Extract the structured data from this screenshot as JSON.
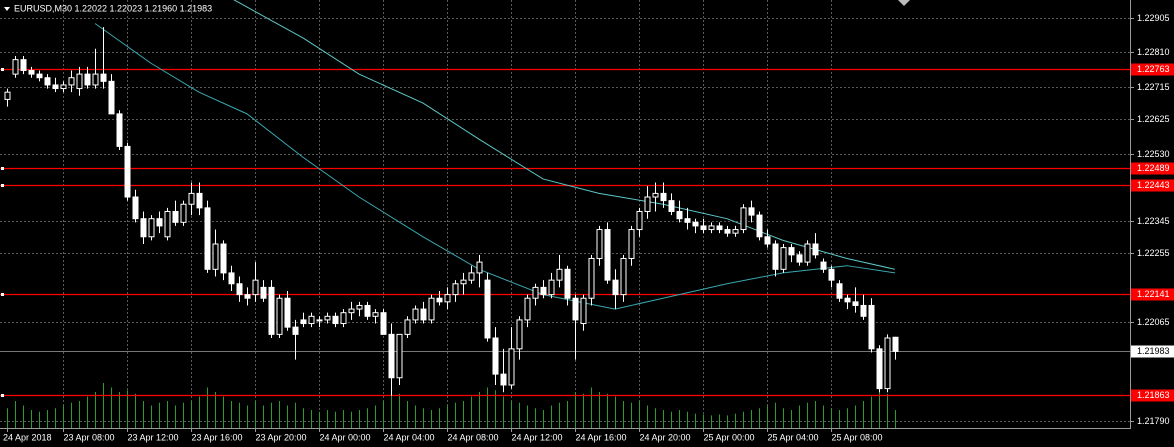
{
  "chart_data": {
    "type": "candlestick",
    "title": "EURUSD,M30  1.22022 1.22023 1.21960 1.21983",
    "ylim": [
      1.21771,
      1.22955
    ],
    "yticks": [
      1.22905,
      {
        "value": 1.2281,
        "label": "1.22810"
      },
      1.22715,
      1.22625,
      {
        "value": 1.2253,
        "label": "1.22530"
      },
      1.22345,
      1.22255,
      1.22065,
      {
        "value": 1.2179,
        "label": "1.21790"
      }
    ],
    "xticks": [
      {
        "value": 0,
        "label": "24 Apr 2018"
      },
      {
        "value": 7,
        "label": "23 Apr 08:00"
      },
      {
        "value": 15,
        "label": "23 Apr 12:00"
      },
      {
        "value": 23,
        "label": "23 Apr 16:00"
      },
      {
        "value": 31,
        "label": "23 Apr 20:00"
      },
      {
        "value": 39,
        "label": "24 Apr 00:00"
      },
      {
        "value": 47,
        "label": "24 Apr 04:00"
      },
      {
        "value": 55,
        "label": "24 Apr 08:00"
      },
      {
        "value": 63,
        "label": "24 Apr 12:00"
      },
      {
        "value": 71,
        "label": "24 Apr 16:00"
      },
      {
        "value": 79,
        "label": "24 Apr 20:00"
      },
      {
        "value": 87,
        "label": "25 Apr 00:00"
      },
      {
        "value": 95,
        "label": "25 Apr 04:00"
      },
      {
        "value": 103,
        "label": "25 Apr 08:00"
      }
    ],
    "grid": true,
    "candle_color": "#ffffff",
    "candles": [
      [
        1.2268,
        1.2271,
        1.2266,
        1.227
      ],
      [
        1.2275,
        1.228,
        1.2274,
        1.2279
      ],
      [
        1.2279,
        1.228,
        1.2275,
        1.2276
      ],
      [
        1.2276,
        1.2277,
        1.2274,
        1.2275
      ],
      [
        1.2275,
        1.2276,
        1.2273,
        1.2274
      ],
      [
        1.2274,
        1.2275,
        1.2271,
        1.2272
      ],
      [
        1.2272,
        1.2274,
        1.227,
        1.2271
      ],
      [
        1.2271,
        1.2273,
        1.227,
        1.2272
      ],
      [
        1.2272,
        1.2276,
        1.227,
        1.2274
      ],
      [
        1.2271,
        1.2277,
        1.2269,
        1.2275
      ],
      [
        1.2275,
        1.2277,
        1.2271,
        1.2272
      ],
      [
        1.2272,
        1.2282,
        1.2271,
        1.2275
      ],
      [
        1.2275,
        1.2288,
        1.2271,
        1.2273
      ],
      [
        1.2273,
        1.2275,
        1.2264,
        1.2264
      ],
      [
        1.2264,
        1.2265,
        1.2254,
        1.2255
      ],
      [
        1.2255,
        1.2256,
        1.224,
        1.2241
      ],
      [
        1.2241,
        1.2243,
        1.2234,
        1.2235
      ],
      [
        1.2235,
        1.2237,
        1.2228,
        1.223
      ],
      [
        1.223,
        1.2236,
        1.2229,
        1.2235
      ],
      [
        1.2235,
        1.2237,
        1.2231,
        1.2233
      ],
      [
        1.223,
        1.2238,
        1.2229,
        1.2237
      ],
      [
        1.2237,
        1.224,
        1.2233,
        1.2234
      ],
      [
        1.2234,
        1.224,
        1.2233,
        1.2239
      ],
      [
        1.2239,
        1.2245,
        1.2236,
        1.2242
      ],
      [
        1.2242,
        1.2245,
        1.2236,
        1.2238
      ],
      [
        1.2238,
        1.224,
        1.222,
        1.2221
      ],
      [
        1.2221,
        1.2232,
        1.2219,
        1.2228
      ],
      [
        1.2228,
        1.2229,
        1.2218,
        1.222
      ],
      [
        1.222,
        1.2222,
        1.2215,
        1.2217
      ],
      [
        1.2217,
        1.2219,
        1.2212,
        1.2214
      ],
      [
        1.2214,
        1.2216,
        1.2211,
        1.2213
      ],
      [
        1.2214,
        1.2223,
        1.2212,
        1.2218
      ],
      [
        1.2216,
        1.2218,
        1.2212,
        1.2213
      ],
      [
        1.2216,
        1.2218,
        1.2202,
        1.2203
      ],
      [
        1.2203,
        1.2214,
        1.2202,
        1.2213
      ],
      [
        1.2213,
        1.2215,
        1.2204,
        1.2205
      ],
      [
        1.2205,
        1.2207,
        1.2196,
        1.2203
      ],
      [
        1.2207,
        1.2209,
        1.2205,
        1.2206
      ],
      [
        1.2206,
        1.2209,
        1.2205,
        1.2208
      ],
      [
        1.2207,
        1.2208,
        1.2205,
        1.2207
      ],
      [
        1.2207,
        1.2209,
        1.2206,
        1.2208
      ],
      [
        1.2208,
        1.2209,
        1.2205,
        1.2206
      ],
      [
        1.2206,
        1.221,
        1.2205,
        1.2209
      ],
      [
        1.2209,
        1.2212,
        1.2207,
        1.221
      ],
      [
        1.221,
        1.2212,
        1.2208,
        1.2211
      ],
      [
        1.2211,
        1.2212,
        1.2207,
        1.2208
      ],
      [
        1.2208,
        1.221,
        1.2206,
        1.2209
      ],
      [
        1.2209,
        1.221,
        1.2203,
        1.2203
      ],
      [
        1.2203,
        1.2206,
        1.2186,
        1.2191
      ],
      [
        1.2191,
        1.2203,
        1.2189,
        1.2203
      ],
      [
        1.2203,
        1.2208,
        1.2202,
        1.2207
      ],
      [
        1.2207,
        1.2211,
        1.2206,
        1.221
      ],
      [
        1.221,
        1.2212,
        1.2206,
        1.2207
      ],
      [
        1.2207,
        1.2214,
        1.2206,
        1.2213
      ],
      [
        1.2213,
        1.2215,
        1.2211,
        1.2212
      ],
      [
        1.2212,
        1.2216,
        1.221,
        1.2214
      ],
      [
        1.2214,
        1.2218,
        1.2212,
        1.2217
      ],
      [
        1.2217,
        1.222,
        1.2214,
        1.2218
      ],
      [
        1.2218,
        1.2222,
        1.2217,
        1.222
      ],
      [
        1.222,
        1.2225,
        1.2216,
        1.2223
      ],
      [
        1.2218,
        1.222,
        1.2201,
        1.2202
      ],
      [
        1.2202,
        1.2205,
        1.2189,
        1.2192
      ],
      [
        1.2192,
        1.2199,
        1.2187,
        1.2189
      ],
      [
        1.2189,
        1.2205,
        1.2188,
        1.2199
      ],
      [
        1.2199,
        1.2208,
        1.2196,
        1.2207
      ],
      [
        1.2207,
        1.2214,
        1.2205,
        1.2213
      ],
      [
        1.2213,
        1.2217,
        1.2211,
        1.2216
      ],
      [
        1.2216,
        1.2218,
        1.2213,
        1.2214
      ],
      [
        1.2214,
        1.222,
        1.2213,
        1.2218
      ],
      [
        1.2218,
        1.2225,
        1.2216,
        1.2221
      ],
      [
        1.2221,
        1.2222,
        1.2211,
        1.2213
      ],
      [
        1.2213,
        1.2214,
        1.2196,
        1.2207
      ],
      [
        1.2206,
        1.2214,
        1.2204,
        1.2213
      ],
      [
        1.2213,
        1.2225,
        1.2211,
        1.2224
      ],
      [
        1.2224,
        1.2233,
        1.2222,
        1.2232
      ],
      [
        1.2232,
        1.2234,
        1.2217,
        1.2218
      ],
      [
        1.2218,
        1.2221,
        1.221,
        1.2214
      ],
      [
        1.2214,
        1.2225,
        1.2212,
        1.2224
      ],
      [
        1.2224,
        1.2233,
        1.2222,
        1.2232
      ],
      [
        1.2232,
        1.2238,
        1.223,
        1.2237
      ],
      [
        1.2237,
        1.2244,
        1.2235,
        1.2241
      ],
      [
        1.2241,
        1.2245,
        1.2237,
        1.2242
      ],
      [
        1.2242,
        1.2245,
        1.2238,
        1.224
      ],
      [
        1.224,
        1.2242,
        1.2236,
        1.2237
      ],
      [
        1.2237,
        1.224,
        1.2234,
        1.2235
      ],
      [
        1.2235,
        1.2238,
        1.2232,
        1.2234
      ],
      [
        1.2234,
        1.2235,
        1.2231,
        1.2233
      ],
      [
        1.2233,
        1.2235,
        1.2231,
        1.2232
      ],
      [
        1.2232,
        1.2234,
        1.2231,
        1.2233
      ],
      [
        1.2233,
        1.2234,
        1.2231,
        1.2232
      ],
      [
        1.2232,
        1.2233,
        1.223,
        1.2231
      ],
      [
        1.2231,
        1.2233,
        1.223,
        1.2232
      ],
      [
        1.2232,
        1.2239,
        1.2231,
        1.2238
      ],
      [
        1.2238,
        1.224,
        1.2234,
        1.2236
      ],
      [
        1.2236,
        1.2237,
        1.2229,
        1.223
      ],
      [
        1.223,
        1.2232,
        1.2227,
        1.2228
      ],
      [
        1.2228,
        1.2229,
        1.2219,
        1.2221
      ],
      [
        1.2221,
        1.2228,
        1.222,
        1.2227
      ],
      [
        1.2227,
        1.2228,
        1.2223,
        1.2225
      ],
      [
        1.2225,
        1.2226,
        1.2222,
        1.2223
      ],
      [
        1.2223,
        1.2229,
        1.2222,
        1.2228
      ],
      [
        1.2228,
        1.2231,
        1.2224,
        1.2225
      ],
      [
        1.2223,
        1.2224,
        1.222,
        1.2221
      ],
      [
        1.2221,
        1.2222,
        1.2216,
        1.2218
      ],
      [
        1.2217,
        1.2218,
        1.2212,
        1.2213
      ],
      [
        1.2213,
        1.2214,
        1.221,
        1.2212
      ],
      [
        1.2212,
        1.2216,
        1.2209,
        1.2211
      ],
      [
        1.2211,
        1.2214,
        1.2207,
        1.2208
      ],
      [
        1.2211,
        1.2213,
        1.2198,
        1.2199
      ],
      [
        1.2199,
        1.22,
        1.2187,
        1.2188
      ],
      [
        1.2188,
        1.2203,
        1.2187,
        1.2202
      ],
      [
        1.22022,
        1.22023,
        1.2196,
        1.21983
      ]
    ],
    "volume_color": "#2e9b2e",
    "volumes": [
      22,
      30,
      25,
      20,
      18,
      20,
      22,
      25,
      28,
      30,
      35,
      40,
      50,
      45,
      40,
      42,
      38,
      30,
      25,
      28,
      30,
      25,
      28,
      30,
      35,
      45,
      40,
      35,
      30,
      28,
      25,
      30,
      25,
      28,
      30,
      25,
      28,
      22,
      20,
      18,
      20,
      18,
      20,
      18,
      20,
      22,
      25,
      30,
      40,
      38,
      30,
      25,
      22,
      20,
      22,
      25,
      28,
      30,
      35,
      40,
      45,
      42,
      35,
      30,
      28,
      25,
      22,
      20,
      25,
      28,
      30,
      40,
      38,
      45,
      40,
      38,
      35,
      30,
      28,
      30,
      25,
      22,
      20,
      18,
      20,
      18,
      16,
      15,
      14,
      15,
      14,
      16,
      18,
      20,
      22,
      25,
      28,
      22,
      20,
      25,
      28,
      30,
      25,
      22,
      20,
      22,
      25,
      30,
      35,
      40,
      38,
      20
    ],
    "moving_averages": [
      {
        "color": "#3aa8b0",
        "x": [
          11,
          18,
          24,
          30,
          37,
          44,
          52,
          59,
          67,
          76,
          82,
          90,
          97,
          105,
          111
        ],
        "values": [
          1.2289,
          1.2278,
          1.227,
          1.2264,
          1.2252,
          1.2241,
          1.223,
          1.2221,
          1.2214,
          1.221,
          1.2213,
          1.2217,
          1.222,
          1.2222,
          1.222
        ]
      },
      {
        "color": "#5cc8c8",
        "x": [
          28,
          37,
          44,
          52,
          59,
          67,
          74,
          82,
          90,
          97,
          105,
          111
        ],
        "values": [
          1.2296,
          1.2285,
          1.2275,
          1.2267,
          1.2257,
          1.2246,
          1.2242,
          1.2239,
          1.2235,
          1.2229,
          1.2224,
          1.2221
        ]
      }
    ],
    "level_color": "#ff0000",
    "levels": [
      1.22763,
      1.22489,
      1.22443,
      1.22141,
      1.21863
    ],
    "current_price": 1.21983
  }
}
